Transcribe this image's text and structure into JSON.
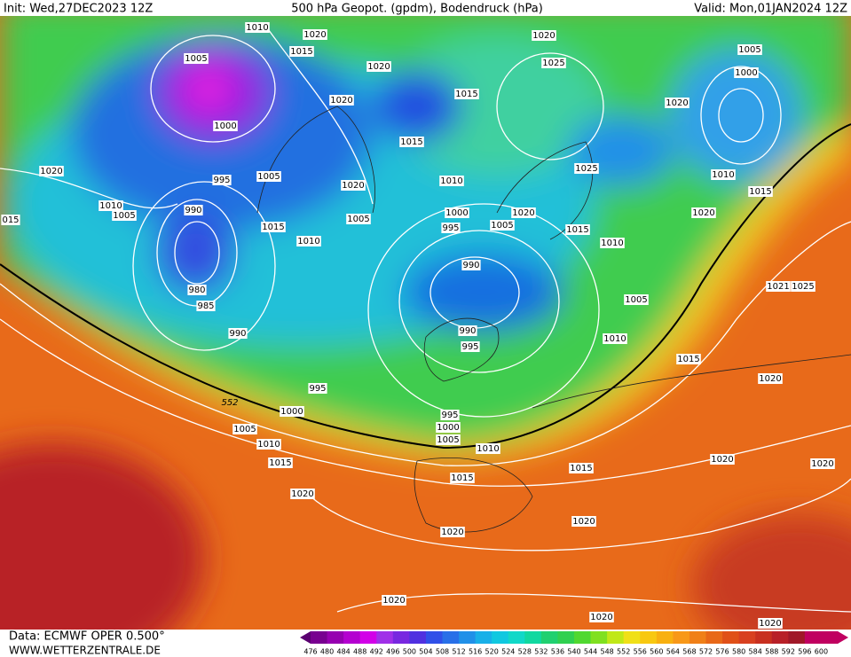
{
  "header": {
    "init": "Init: Wed,27DEC2023 12Z",
    "title": "500 hPa Geopot. (gpdm), Bodendruck (hPa)",
    "valid": "Valid: Mon,01JAN2024 12Z"
  },
  "footer": {
    "source": "Data: ECMWF OPER 0.500°",
    "url": "WWW.WETTERZENTRALE.DE"
  },
  "map": {
    "contour_label": "552",
    "isobar_labels": [
      "1010",
      "1020",
      "1005",
      "1015",
      "1020",
      "1020",
      "1025",
      "1005",
      "1000",
      "1015",
      "1020",
      "1020",
      "1000",
      "1015",
      "1025",
      "1020",
      "995",
      "1005",
      "1020",
      "1010",
      "1010",
      "1015",
      "1010",
      "1005",
      "990",
      "1000",
      "1020",
      "1020",
      "1005",
      "995",
      "1005",
      "1015",
      "1015",
      "1010",
      "1010",
      "990",
      "980",
      "985",
      "1021",
      "1025",
      "1005",
      "990",
      "990",
      "995",
      "1010",
      "1015",
      "1020",
      "995",
      "1000",
      "995",
      "1000",
      "1005",
      "1005",
      "1010",
      "1010",
      "1015",
      "1020",
      "1020",
      "1015",
      "1015",
      "1020",
      "1020",
      "1020",
      "1020",
      "1020",
      "1020",
      "015"
    ]
  },
  "colorbar": {
    "levels": [
      476,
      480,
      484,
      488,
      492,
      496,
      500,
      504,
      508,
      512,
      516,
      520,
      524,
      528,
      532,
      536,
      540,
      544,
      548,
      552,
      556,
      560,
      564,
      568,
      572,
      576,
      580,
      584,
      588,
      592,
      596,
      600
    ],
    "colors": [
      "#5a0070",
      "#780090",
      "#9600b0",
      "#b400d0",
      "#d200e8",
      "#a030e8",
      "#7828e0",
      "#5030e0",
      "#3050e8",
      "#2870e8",
      "#2090e8",
      "#18b0e8",
      "#10c8e0",
      "#10d8c8",
      "#10d8a0",
      "#20d070",
      "#30d050",
      "#50d830",
      "#80e020",
      "#c0e818",
      "#f0e018",
      "#f8c810",
      "#f8b010",
      "#f89818",
      "#f08018",
      "#e86818",
      "#e05018",
      "#d84020",
      "#c83020",
      "#b82028",
      "#a01828",
      "#c00060"
    ]
  }
}
